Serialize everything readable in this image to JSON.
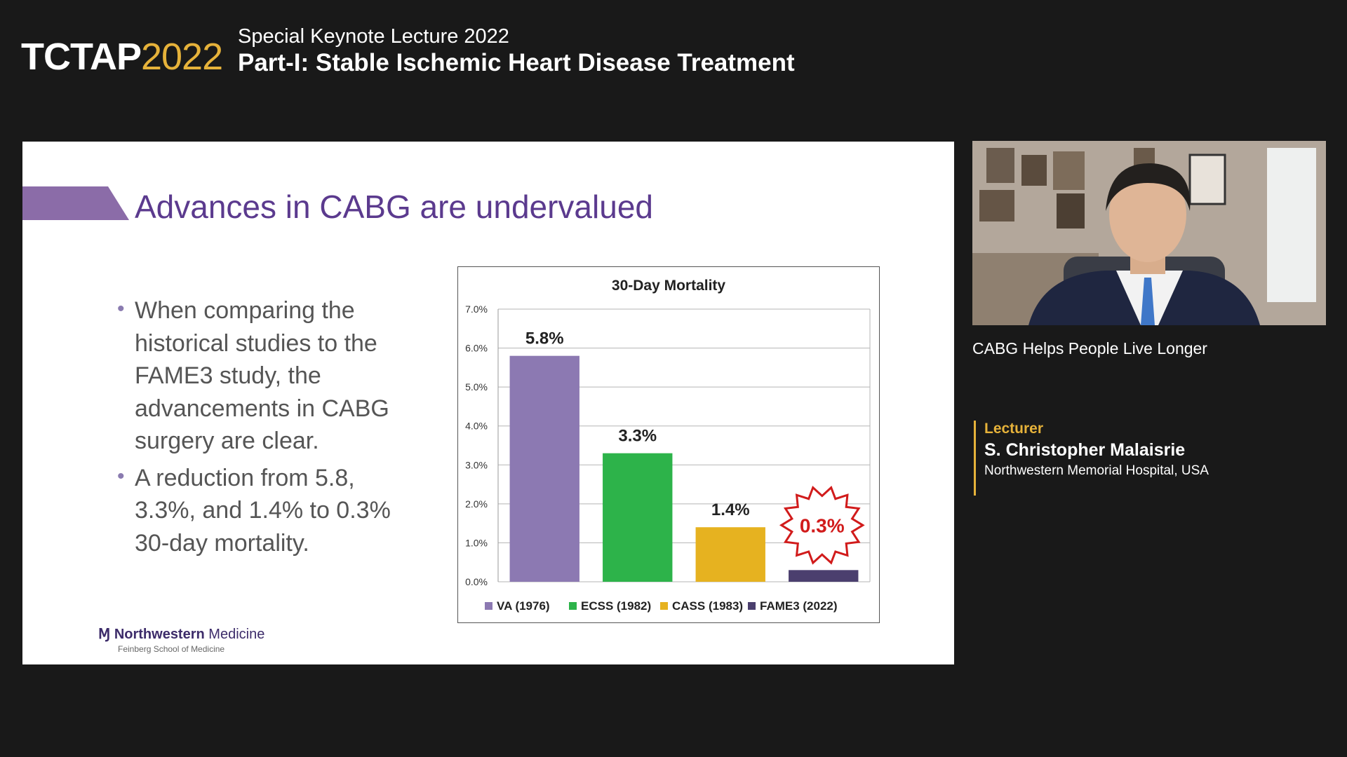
{
  "header": {
    "brand_name": "TCTAP",
    "brand_year": "2022",
    "lecture_subtitle": "Special Keynote Lecture 2022",
    "lecture_title": "Part-I: Stable Ischemic Heart Disease Treatment"
  },
  "slide": {
    "title": "Advances in CABG are undervalued",
    "bullets": [
      "When comparing the historical studies to the FAME3 study, the advancements in CABG surgery are clear.",
      "A reduction from 5.8, 3.3%, and 1.4% to 0.3% 30-day mortality."
    ],
    "logo_main": "Northwestern",
    "logo_main_light": "Medicine",
    "logo_sub": "Feinberg School of Medicine"
  },
  "chart_data": {
    "type": "bar",
    "title": "30-Day Mortality",
    "categories": [
      "VA (1976)",
      "ECSS (1982)",
      "CASS (1983)",
      "FAME3 (2022)"
    ],
    "values": [
      5.8,
      3.3,
      1.4,
      0.3
    ],
    "data_labels": [
      "5.8%",
      "3.3%",
      "1.4%",
      "0.3%"
    ],
    "colors": [
      "#8c79b2",
      "#2db34a",
      "#e6b220",
      "#4b3f6e"
    ],
    "highlight_label_color": "#d11b1b",
    "ylim": [
      0,
      7
    ],
    "yticks": [
      "0.0%",
      "1.0%",
      "2.0%",
      "3.0%",
      "4.0%",
      "5.0%",
      "6.0%",
      "7.0%"
    ],
    "grid": true,
    "legend": "bottom"
  },
  "video": {
    "caption": "CABG Helps People Live Longer"
  },
  "lecturer": {
    "label": "Lecturer",
    "name": "S. Christopher Malaisrie",
    "affiliation": "Northwestern Memorial Hospital, USA"
  }
}
